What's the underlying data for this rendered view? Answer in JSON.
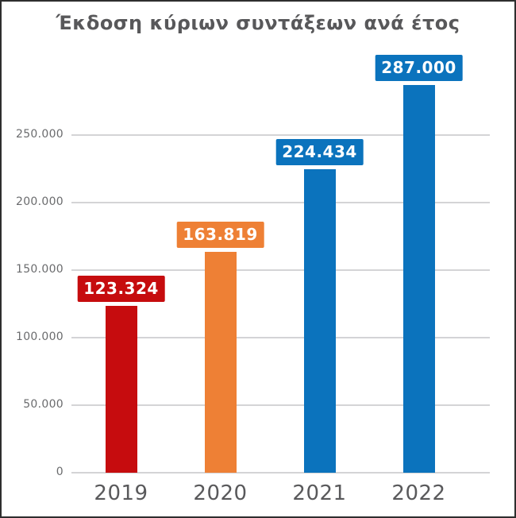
{
  "title": "Έκδοση κύριων συντάξεων ανά έτος",
  "chart_data": {
    "type": "bar",
    "title": "Έκδοση κύριων συντάξεων ανά έτος",
    "categories": [
      "2019",
      "2020",
      "2021",
      "2022"
    ],
    "values": [
      123324,
      163819,
      224434,
      287000
    ],
    "data_labels": [
      "123.324",
      "163.819",
      "224.434",
      "287.000"
    ],
    "bar_colors": [
      "#c60c0e",
      "#ee8035",
      "#0b73bd",
      "#0b73bd"
    ],
    "xlabel": "",
    "ylabel": "",
    "ylim": [
      0,
      300000
    ],
    "ytick_step": 50000,
    "ytick_labels": [
      "0",
      "50.000",
      "100.000",
      "150.000",
      "200.000",
      "250.000"
    ],
    "grid": true,
    "legend": false,
    "data_label_style": "boxed-above-bar",
    "colors": {
      "title_text": "#58585a",
      "axis_text": "#6a6b6d",
      "gridline": "#d4d4d6",
      "data_label_text": "#ffffff",
      "frame_border": "#2e2e2e",
      "background": "#ffffff"
    }
  }
}
